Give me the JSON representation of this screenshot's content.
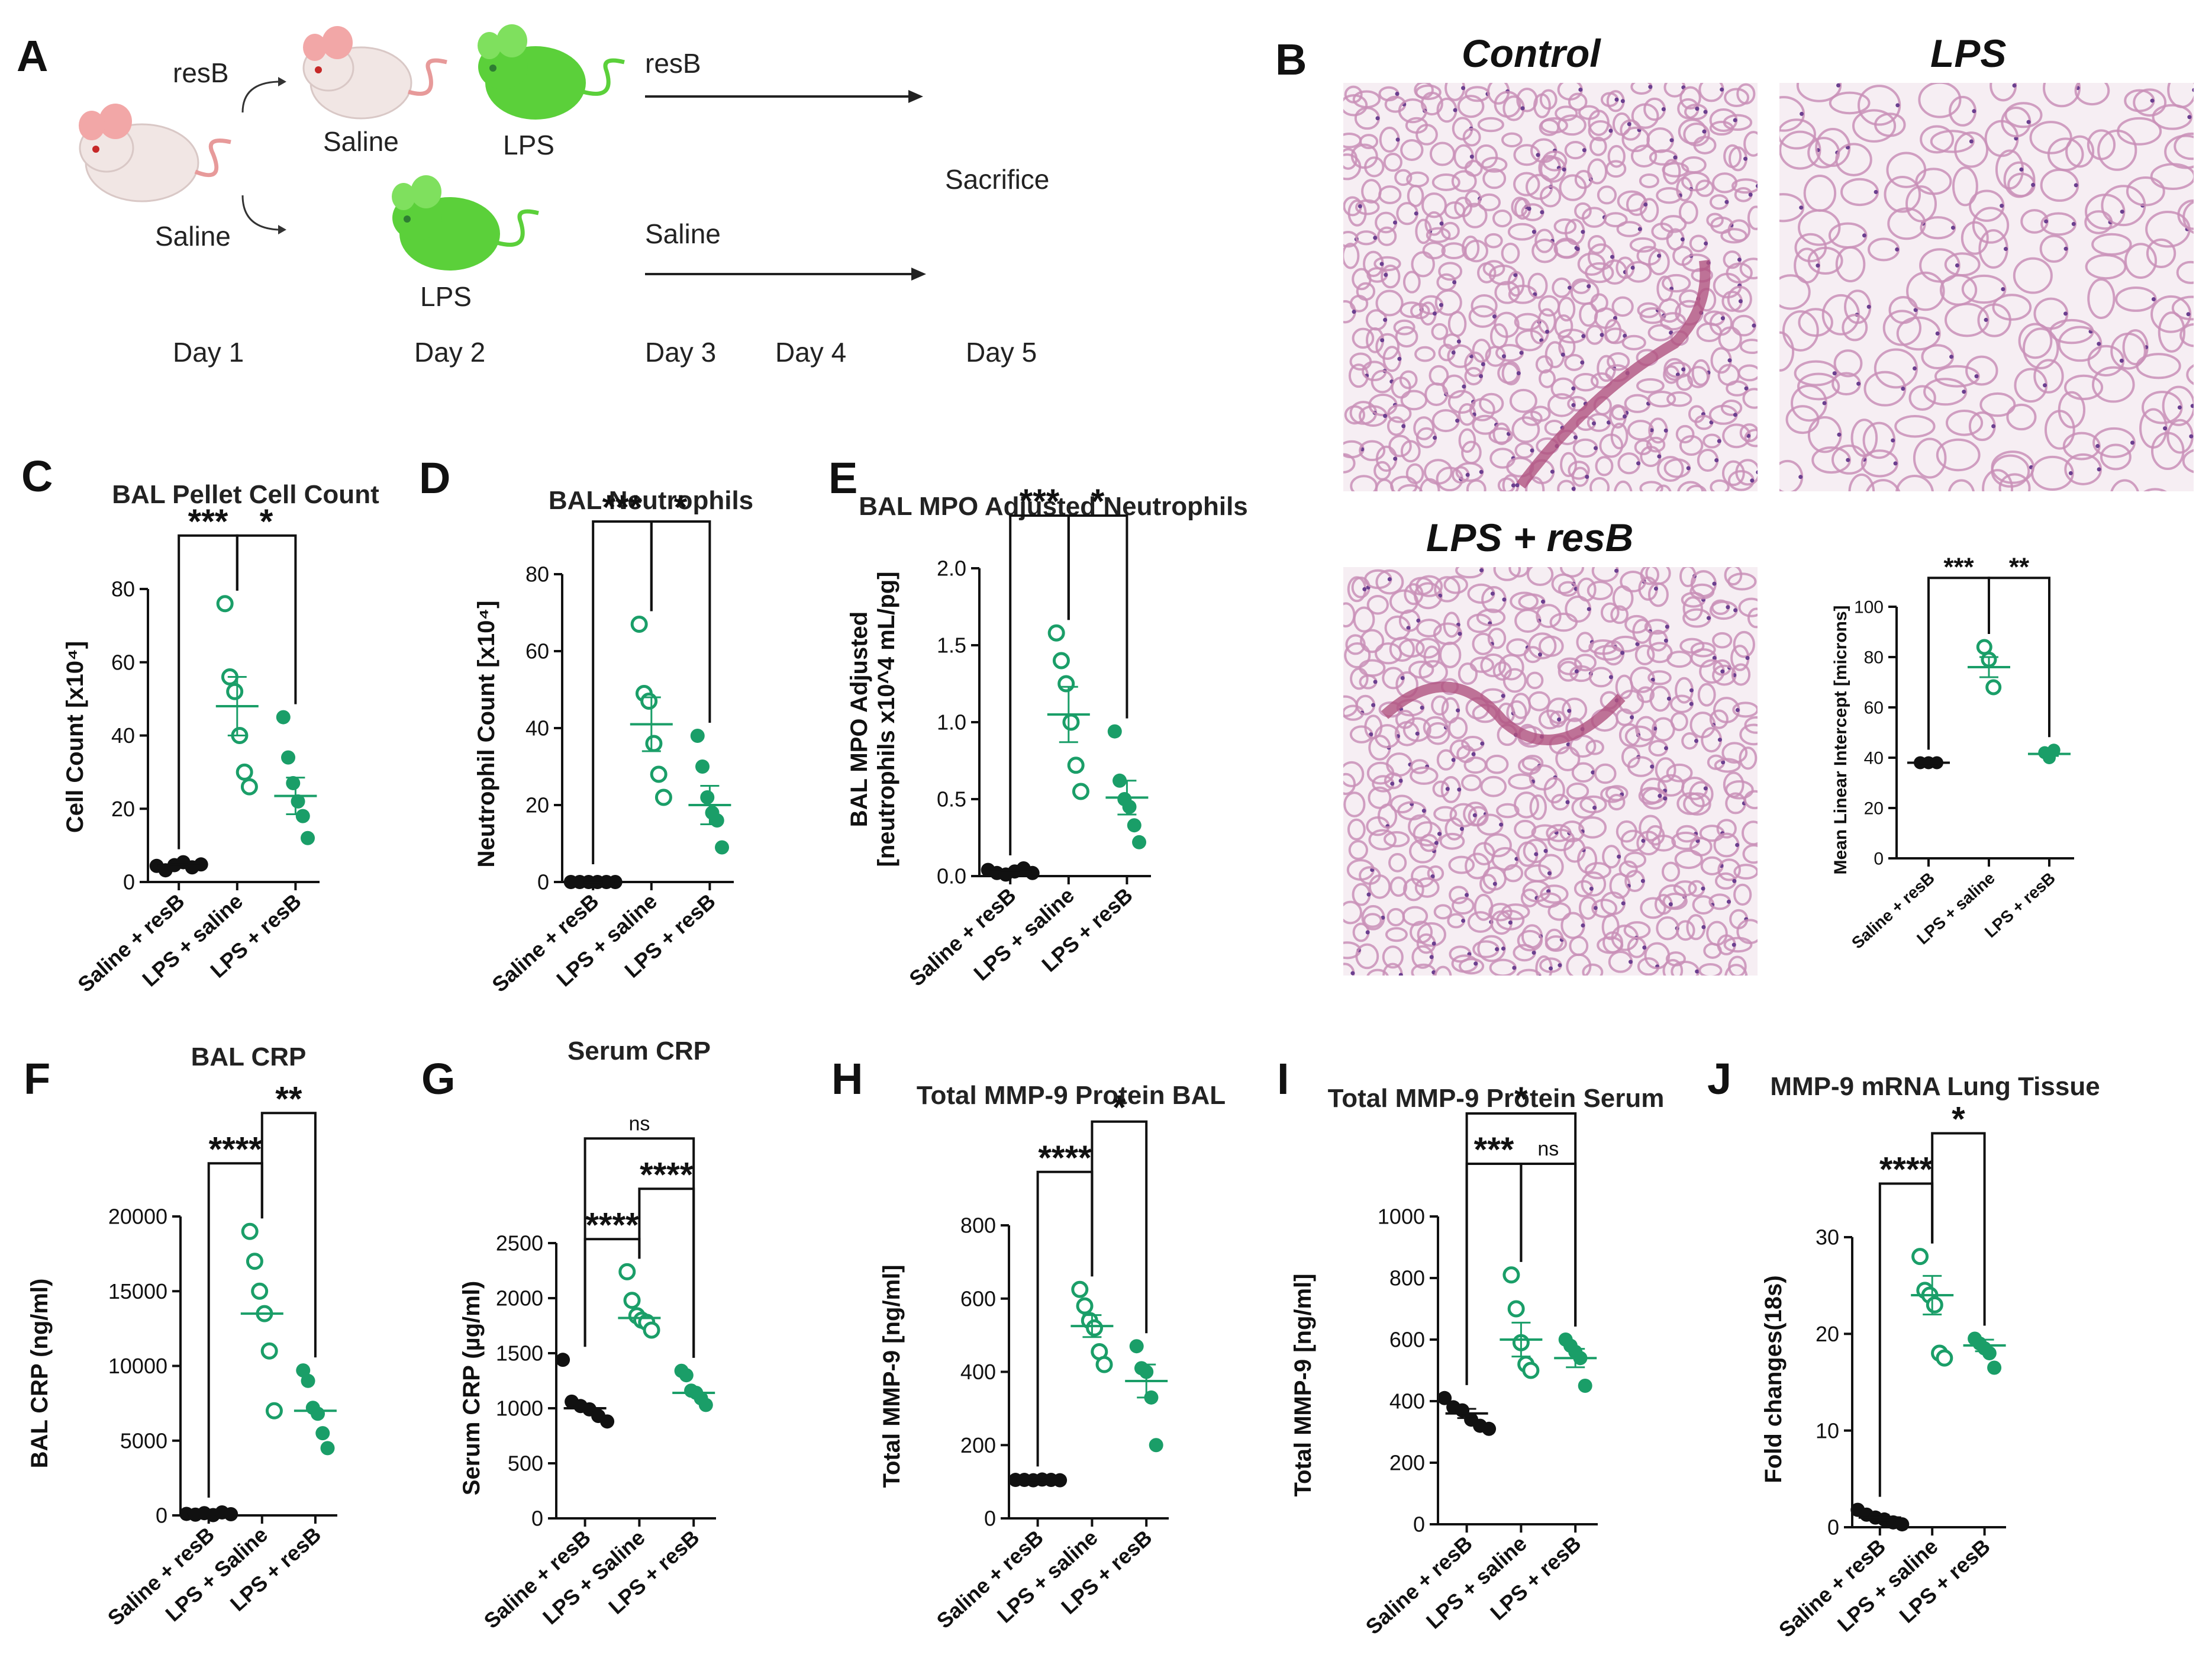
{
  "panel_letters": [
    "A",
    "B",
    "C",
    "D",
    "E",
    "F",
    "G",
    "H",
    "I",
    "J"
  ],
  "timeline": {
    "left_resb": "resB",
    "left_saline": "Saline",
    "mouse_saline": "Saline",
    "mouse_lps_top": "LPS",
    "mouse_lps_bottom": "LPS",
    "arrow_top_label": "resB",
    "arrow_bottom_label": "Saline",
    "sacrifice": "Sacrifice",
    "days": [
      "Day 1",
      "Day 2",
      "Day 3",
      "Day 4",
      "Day 5"
    ],
    "colors": {
      "white_mouse": "#f1e6e4",
      "green_mouse": "#5bd03a",
      "ear": "#f2a7a7",
      "tail": "#e79a9a"
    }
  },
  "micrographs": {
    "titles": [
      "Control",
      "LPS",
      "LPS + resB"
    ],
    "colors": {
      "background": "#f6eef3",
      "tissue": "#c98fb7",
      "nucleus": "#6b3f8f",
      "vessel": "#b0527f"
    }
  },
  "colors": {
    "saline_resb": "#111111",
    "lps_saline": "#1a9e68",
    "lps_resb": "#1a9e68"
  },
  "chart_data": [
    {
      "panel": "C",
      "type": "scatter",
      "title": "BAL Pellet Cell Count",
      "ylabel": "Cell Count [x10⁴]",
      "ylim": [
        0,
        80
      ],
      "yticks": [
        "0",
        "20",
        "40",
        "60",
        "80"
      ],
      "categories": [
        "Saline + resB",
        "LPS + saline",
        "LPS + resB"
      ],
      "points": [
        [
          4.4,
          3.2,
          4.6,
          5.4,
          4.0,
          4.8
        ],
        [
          76,
          56,
          52,
          40,
          30,
          26
        ],
        [
          45,
          34,
          27,
          22,
          18,
          12
        ]
      ],
      "means": [
        4.4,
        48,
        23.5
      ],
      "sems": [
        0.4,
        8,
        5
      ],
      "significance": [
        {
          "from": 0,
          "to": 1,
          "label": "***",
          "level": 2
        },
        {
          "from": 1,
          "to": 2,
          "label": "*",
          "level": 2
        }
      ]
    },
    {
      "panel": "D",
      "type": "scatter",
      "title": "BAL Neutrophils",
      "ylabel": "Neutrophil Count [x10⁴]",
      "ylim": [
        0,
        80
      ],
      "yticks": [
        "0",
        "20",
        "40",
        "60",
        "80"
      ],
      "categories": [
        "Saline + resB",
        "LPS + saline",
        "LPS + resB"
      ],
      "points": [
        [
          0,
          0,
          0,
          0,
          0,
          0
        ],
        [
          67,
          49,
          47,
          36,
          28,
          22
        ],
        [
          38,
          30,
          22,
          18,
          16,
          9
        ]
      ],
      "means": [
        0,
        41,
        20
      ],
      "sems": [
        0.2,
        7,
        5
      ],
      "significance": [
        {
          "from": 0,
          "to": 1,
          "label": "***",
          "level": 2
        },
        {
          "from": 1,
          "to": 2,
          "label": "*",
          "level": 2
        }
      ]
    },
    {
      "panel": "E",
      "type": "scatter",
      "title": "BAL MPO Adjusted Neutrophils",
      "ylabel": "BAL MPO Adjusted\n[neutrophils x10^4 mL/pg]",
      "ylim": [
        0,
        2.0
      ],
      "yticks": [
        "0.0",
        "0.5",
        "1.0",
        "1.5",
        "2.0"
      ],
      "categories": [
        "Saline + resB",
        "LPS + saline",
        "LPS + resB"
      ],
      "points": [
        [
          0.04,
          0.02,
          0.01,
          0.03,
          0.05,
          0.02
        ],
        [
          1.58,
          1.4,
          1.25,
          1.0,
          0.72,
          0.55
        ],
        [
          0.94,
          0.62,
          0.5,
          0.45,
          0.33,
          0.22
        ]
      ],
      "means": [
        0.03,
        1.05,
        0.51
      ],
      "sems": [
        0.01,
        0.18,
        0.11
      ],
      "significance": [
        {
          "from": 0,
          "to": 1,
          "label": "***",
          "level": 2
        },
        {
          "from": 1,
          "to": 2,
          "label": "*",
          "level": 2
        }
      ]
    },
    {
      "panel": "B-graph",
      "type": "scatter",
      "title": "",
      "ylabel": "Mean Linear Intercept [microns]",
      "ylim": [
        0,
        100
      ],
      "yticks": [
        "0",
        "20",
        "40",
        "60",
        "80",
        "100"
      ],
      "categories": [
        "Saline + resB",
        "LPS + saline",
        "LPS + resB"
      ],
      "points": [
        [
          38,
          38,
          38
        ],
        [
          84,
          79,
          68
        ],
        [
          42,
          40,
          43
        ]
      ],
      "means": [
        38,
        76,
        41.5
      ],
      "sems": [
        0.3,
        4,
        0.8
      ],
      "significance": [
        {
          "from": 0,
          "to": 1,
          "label": "***",
          "level": 2
        },
        {
          "from": 1,
          "to": 2,
          "label": "**",
          "level": 2
        }
      ]
    },
    {
      "panel": "F",
      "type": "scatter",
      "title": "BAL CRP",
      "ylabel": "BAL CRP (ng/ml)",
      "ylim": [
        0,
        20000
      ],
      "yticks": [
        "0",
        "5000",
        "10000",
        "15000",
        "20000"
      ],
      "categories": [
        "Saline + resB",
        "LPS + Saline",
        "LPS + resB"
      ],
      "points": [
        [
          100,
          50,
          150,
          20,
          200,
          80
        ],
        [
          19000,
          17000,
          15000,
          13500,
          11000,
          7000
        ],
        [
          9700,
          9000,
          7200,
          6800,
          5500,
          4500
        ]
      ],
      "means": [
        100,
        13500,
        7000
      ],
      "sems": [
        0,
        0,
        0
      ],
      "significance": [
        {
          "from": 0,
          "to": 1,
          "label": "****",
          "level": 2
        },
        {
          "from": 1,
          "to": 2,
          "label": "**",
          "level": 3
        }
      ]
    },
    {
      "panel": "G",
      "type": "scatter",
      "title": "Serum CRP",
      "ylabel": "Serum CRP (µg/ml)",
      "ylim": [
        0,
        2500
      ],
      "yticks": [
        "0",
        "500",
        "1000",
        "1500",
        "2000",
        "2500"
      ],
      "categories": [
        "Saline + resB",
        "LPS + Saline",
        "LPS + resB"
      ],
      "points": [
        [
          1440,
          1060,
          1020,
          990,
          930,
          880
        ],
        [
          2240,
          1980,
          1840,
          1800,
          1780,
          1710
        ],
        [
          1340,
          1300,
          1160,
          1140,
          1090,
          1030
        ]
      ],
      "means": [
        1000,
        1820,
        1140
      ],
      "sems": [
        0,
        0,
        0
      ],
      "significance": [
        {
          "from": 0,
          "to": 1,
          "label": "****",
          "level": 1
        },
        {
          "from": 1,
          "to": 2,
          "label": "****",
          "level": 2
        },
        {
          "from": 0,
          "to": 2,
          "label": "ns",
          "level": 3
        }
      ]
    },
    {
      "panel": "H",
      "type": "scatter",
      "title": "Total MMP-9 Protein BAL",
      "ylabel": "Total MMP-9 [ng/ml]",
      "ylim": [
        0,
        800
      ],
      "yticks": [
        "0",
        "200",
        "400",
        "600",
        "800"
      ],
      "categories": [
        "Saline + resB",
        "LPS + saline",
        "LPS + resB"
      ],
      "points": [
        [
          105,
          105,
          104,
          106,
          105,
          104
        ],
        [
          625,
          580,
          540,
          520,
          455,
          420
        ],
        [
          470,
          410,
          400,
          330,
          200
        ]
      ],
      "means": [
        105,
        525,
        375
      ],
      "sems": [
        1,
        30,
        45
      ],
      "significance": [
        {
          "from": 0,
          "to": 1,
          "label": "****",
          "level": 2
        },
        {
          "from": 1,
          "to": 2,
          "label": "*",
          "level": 3
        }
      ]
    },
    {
      "panel": "I",
      "type": "scatter",
      "title": "Total MMP-9 Protein Serum",
      "ylabel": "Total MMP-9 [ng/ml]",
      "ylim": [
        0,
        1000
      ],
      "yticks": [
        "0",
        "200",
        "400",
        "600",
        "800",
        "1000"
      ],
      "categories": [
        "Saline + resB",
        "LPS + saline",
        "LPS + resB"
      ],
      "points": [
        [
          410,
          380,
          370,
          340,
          320,
          310
        ],
        [
          810,
          700,
          590,
          520,
          500
        ],
        [
          600,
          580,
          560,
          540,
          450
        ]
      ],
      "means": [
        360,
        600,
        540
      ],
      "sems": [
        15,
        55,
        30
      ],
      "significance": [
        {
          "from": 0,
          "to": 1,
          "label": "***",
          "level": 2
        },
        {
          "from": 1,
          "to": 2,
          "label": "ns",
          "level": 2
        },
        {
          "from": 0,
          "to": 2,
          "label": "*",
          "level": 3
        }
      ]
    },
    {
      "panel": "J",
      "type": "scatter",
      "title": "MMP-9 mRNA Lung Tissue",
      "ylabel": "Fold changes(18s)",
      "ylim": [
        0,
        30
      ],
      "yticks": [
        "0",
        "10",
        "20",
        "30"
      ],
      "categories": [
        "Saline + resB",
        "LPS + saline",
        "LPS + resB"
      ],
      "points": [
        [
          1.8,
          1.3,
          1.0,
          0.8,
          0.5,
          0.3
        ],
        [
          28,
          24.5,
          24,
          23,
          18,
          17.5
        ],
        [
          19.5,
          19,
          18.5,
          18,
          16.5
        ]
      ],
      "means": [
        1.0,
        24,
        18.8
      ],
      "sems": [
        0.3,
        2.0,
        0.6
      ],
      "significance": [
        {
          "from": 0,
          "to": 1,
          "label": "****",
          "level": 2
        },
        {
          "from": 1,
          "to": 2,
          "label": "*",
          "level": 3
        }
      ]
    }
  ]
}
